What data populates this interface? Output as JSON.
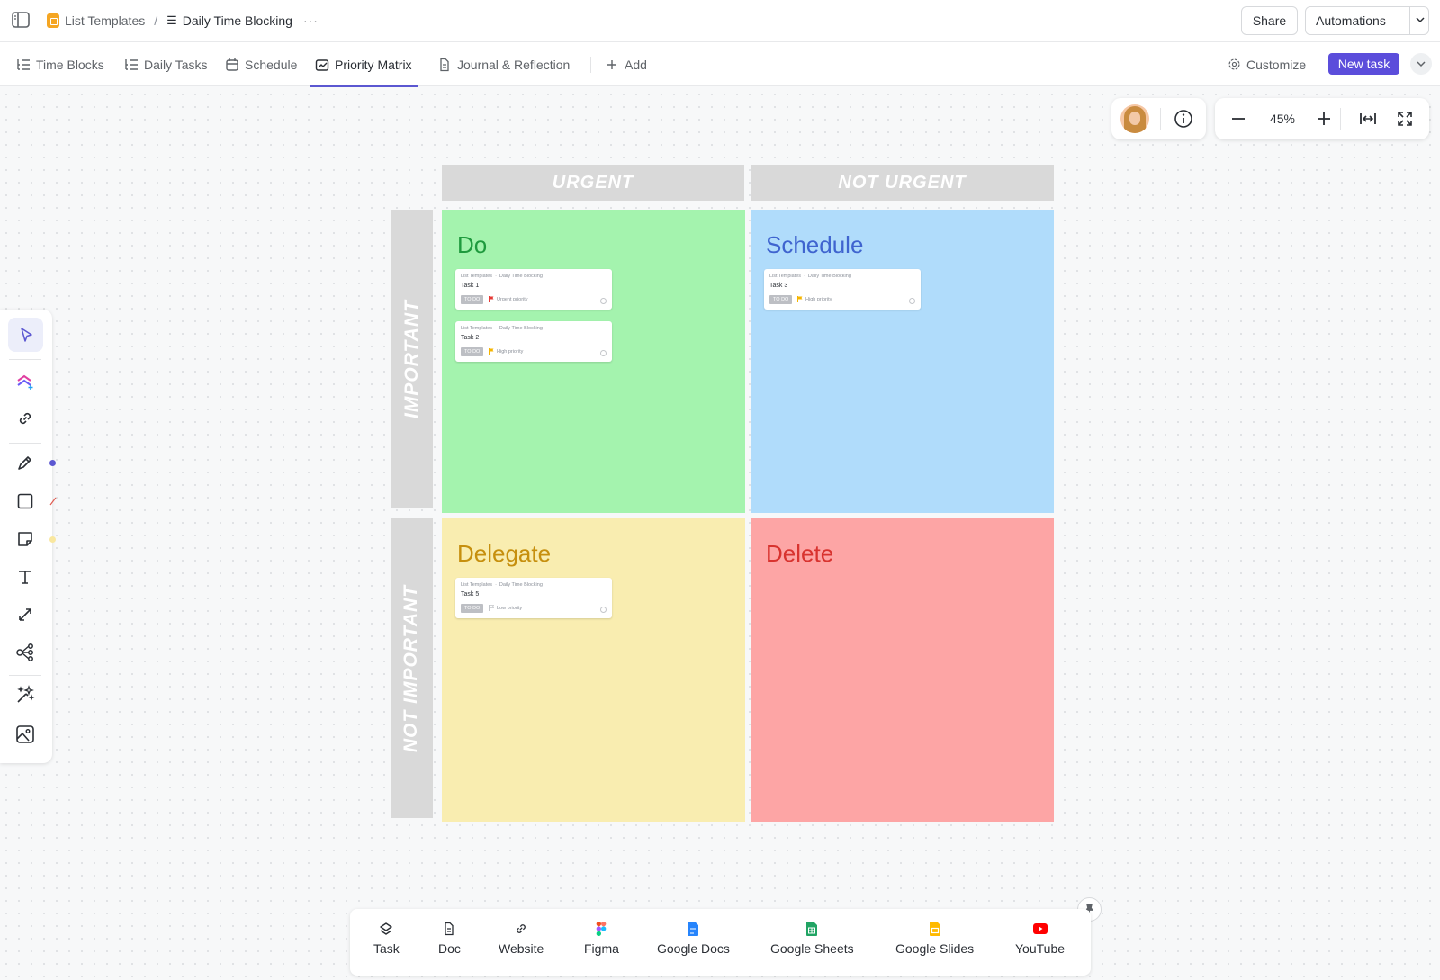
{
  "breadcrumb": {
    "space": "List Templates",
    "separator": "/",
    "list": "Daily Time Blocking",
    "more": "···"
  },
  "header": {
    "share_label": "Share",
    "automations_label": "Automations"
  },
  "tabs": [
    {
      "label": "Time Blocks",
      "icon": "list-tree-icon"
    },
    {
      "label": "Daily Tasks",
      "icon": "list-tree-icon"
    },
    {
      "label": "Schedule",
      "icon": "calendar-icon"
    },
    {
      "label": "Priority Matrix",
      "icon": "whiteboard-icon",
      "active": true
    },
    {
      "label": "Journal & Reflection",
      "icon": "doc-icon"
    },
    {
      "label": "Add",
      "icon": "plus-icon"
    }
  ],
  "toolbar_right": {
    "customize_label": "Customize",
    "new_task_label": "New task"
  },
  "zoom": {
    "level": "45%"
  },
  "matrix": {
    "columns": [
      "URGENT",
      "NOT URGENT"
    ],
    "rows": [
      "IMPORTANT",
      "NOT IMPORTANT"
    ],
    "quadrants": {
      "do": {
        "title": "Do",
        "color": "#a4f3ae",
        "cards": [
          {
            "space": "List Templates",
            "list": "Daily Time Blocking",
            "name": "Task 1",
            "status": "TO DO",
            "priority": "Urgent priority",
            "flag_color": "#e53935"
          },
          {
            "space": "List Templates",
            "list": "Daily Time Blocking",
            "name": "Task 2",
            "status": "TO DO",
            "priority": "High priority",
            "flag_color": "#f5b400"
          }
        ]
      },
      "schedule": {
        "title": "Schedule",
        "color": "#b0dcfb",
        "cards": [
          {
            "space": "List Templates",
            "list": "Daily Time Blocking",
            "name": "Task 3",
            "status": "TO DO",
            "priority": "High priority",
            "flag_color": "#f5b400"
          }
        ]
      },
      "delegate": {
        "title": "Delegate",
        "color": "#f9edb0",
        "cards": [
          {
            "space": "List Templates",
            "list": "Daily Time Blocking",
            "name": "Task 5",
            "status": "TO DO",
            "priority": "Low priority",
            "flag_color": "#c4c6ca"
          }
        ]
      },
      "delete": {
        "title": "Delete",
        "color": "#fda5a5",
        "cards": []
      }
    }
  },
  "left_tools": [
    {
      "name": "select-tool",
      "icon": "cursor-icon"
    },
    {
      "name": "clickup-ai-tool",
      "icon": "ai-create-icon"
    },
    {
      "name": "link-tool",
      "icon": "link-icon"
    },
    {
      "name": "pen-tool",
      "icon": "pen-icon"
    },
    {
      "name": "shape-tool",
      "icon": "square-icon"
    },
    {
      "name": "sticky-note-tool",
      "icon": "sticky-note-icon"
    },
    {
      "name": "text-tool",
      "icon": "text-icon"
    },
    {
      "name": "connector-tool",
      "icon": "connector-icon"
    },
    {
      "name": "mind-map-tool",
      "icon": "mind-map-icon"
    },
    {
      "name": "ai-magic-tool",
      "icon": "sparkles-icon"
    },
    {
      "name": "image-tool",
      "icon": "image-icon"
    }
  ],
  "dock": [
    {
      "label": "Task",
      "icon": "task-stack-icon"
    },
    {
      "label": "Doc",
      "icon": "doc-icon"
    },
    {
      "label": "Website",
      "icon": "link-icon"
    },
    {
      "label": "Figma",
      "icon": "figma-icon"
    },
    {
      "label": "Google Docs",
      "icon": "google-docs-icon",
      "color": "#2684fc"
    },
    {
      "label": "Google Sheets",
      "icon": "google-sheets-icon",
      "color": "#21a464"
    },
    {
      "label": "Google Slides",
      "icon": "google-slides-icon",
      "color": "#ffba00"
    },
    {
      "label": "YouTube",
      "icon": "youtube-icon",
      "color": "#ff0000"
    }
  ],
  "colors": {
    "accent": "#5b4ddb",
    "pen_dot": "#5b57d1",
    "sticky_dot": "#f9e79f"
  }
}
